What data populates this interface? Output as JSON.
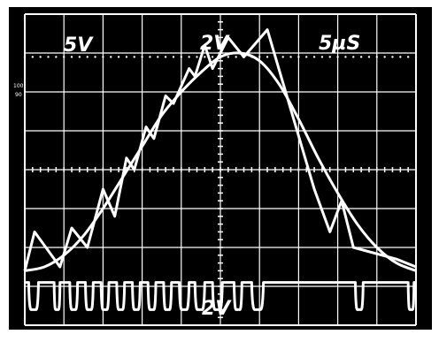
{
  "chart_data": {
    "type": "line",
    "title": "",
    "grid": true,
    "divisions": {
      "x": 10,
      "y": 8
    },
    "labels": {
      "ch1_scale": "5V",
      "ch2_scale": "2V",
      "ch3_scale": "2V",
      "timebase": "5µS",
      "ref_mark_top": "100",
      "ref_mark_bottom": "90"
    },
    "colors": {
      "screen": "#000000",
      "trace": "#ffffff",
      "grid": "#ffffff"
    },
    "series": [
      {
        "name": "",
        "description_hidden": true,
        "x": [
          0,
          0.5,
          1,
          1.5,
          2,
          2.5,
          3,
          3.5,
          4,
          4.5,
          5,
          5.5,
          6,
          6.5,
          7,
          7.5,
          8,
          8.5,
          9,
          9.5,
          10
        ],
        "y": [
          -2.6,
          -2.5,
          -2.2,
          -1.7,
          -1.0,
          -0.2,
          0.6,
          1.4,
          2.0,
          2.5,
          2.9,
          3.0,
          2.8,
          2.2,
          1.3,
          0.3,
          -0.6,
          -1.4,
          -2.0,
          -2.4,
          -2.6
        ]
      },
      {
        "name": "",
        "x": [
          0,
          0.25,
          0.9,
          1.2,
          1.6,
          2.0,
          2.3,
          2.6,
          2.8,
          3.1,
          3.3,
          3.6,
          3.8,
          4.2,
          4.35,
          4.6,
          4.8,
          5.2,
          5.6,
          6.2,
          7.4,
          7.8,
          8.1,
          8.4,
          9.5,
          10
        ],
        "y": [
          -2.6,
          -1.6,
          -2.5,
          -1.5,
          -2.0,
          -0.5,
          -1.2,
          0.3,
          0.0,
          1.1,
          0.8,
          1.9,
          1.7,
          2.6,
          2.4,
          3.2,
          2.6,
          3.4,
          2.9,
          3.6,
          -0.5,
          -1.6,
          -0.8,
          -2.0,
          -2.3,
          -2.5
        ]
      },
      {
        "name": "",
        "pulse_train": {
          "high": -2.9,
          "low": -3.6,
          "pulses": [
            [
              0.1,
              0.35
            ],
            [
              0.75,
              0.9
            ],
            [
              1.15,
              1.35
            ],
            [
              1.55,
              1.75
            ],
            [
              1.95,
              2.15
            ],
            [
              2.35,
              2.55
            ],
            [
              2.75,
              2.95
            ],
            [
              3.15,
              3.35
            ],
            [
              3.55,
              3.75
            ],
            [
              3.95,
              4.2
            ],
            [
              4.35,
              4.6
            ],
            [
              4.8,
              5.05
            ],
            [
              5.35,
              5.55
            ],
            [
              5.8,
              6.1
            ],
            [
              8.45,
              8.65
            ],
            [
              9.8,
              9.95
            ]
          ]
        }
      }
    ]
  }
}
